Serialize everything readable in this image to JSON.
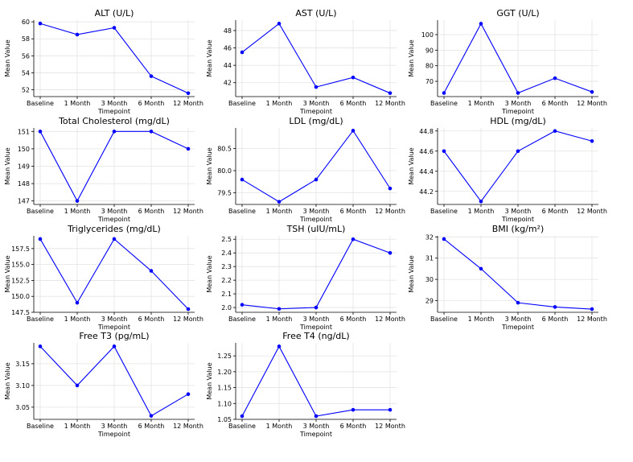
{
  "chart_data": [
    {
      "type": "line",
      "title": "ALT (U/L)",
      "xlabel": "Timepoint",
      "ylabel": "Mean Value",
      "categories": [
        "Baseline",
        "1 Month",
        "3 Month",
        "6 Month",
        "12 Month"
      ],
      "values": [
        59.8,
        58.5,
        59.3,
        53.6,
        51.6
      ],
      "ylim": [
        51.2,
        60.2
      ],
      "yticks": [
        52,
        54,
        56,
        58,
        60
      ],
      "ytick_labels": [
        "52",
        "54",
        "56",
        "58",
        "60"
      ],
      "grid": true,
      "color": "#0000ff"
    },
    {
      "type": "line",
      "title": "AST (U/L)",
      "xlabel": "Timepoint",
      "ylabel": "Mean Value",
      "categories": [
        "Baseline",
        "1 Month",
        "3 Month",
        "6 Month",
        "12 Month"
      ],
      "values": [
        45.5,
        48.8,
        41.5,
        42.6,
        40.8
      ],
      "ylim": [
        40.4,
        49.2
      ],
      "yticks": [
        42,
        44,
        46,
        48
      ],
      "ytick_labels": [
        "42",
        "44",
        "46",
        "48"
      ],
      "grid": true,
      "color": "#0000ff"
    },
    {
      "type": "line",
      "title": "GGT (U/L)",
      "xlabel": "Timepoint",
      "ylabel": "Mean Value",
      "categories": [
        "Baseline",
        "1 Month",
        "3 Month",
        "6 Month",
        "12 Month"
      ],
      "values": [
        62.5,
        107,
        62.5,
        72,
        63.2
      ],
      "ylim": [
        60.2,
        109.3
      ],
      "yticks": [
        70,
        80,
        90,
        100
      ],
      "ytick_labels": [
        "70",
        "80",
        "90",
        "100"
      ],
      "grid": true,
      "color": "#0000ff"
    },
    {
      "type": "line",
      "title": "Total Cholesterol (mg/dL)",
      "xlabel": "Timepoint",
      "ylabel": "Mean Value",
      "categories": [
        "Baseline",
        "1 Month",
        "3 Month",
        "6 Month",
        "12 Month"
      ],
      "values": [
        151,
        147,
        151,
        151,
        150
      ],
      "ylim": [
        146.8,
        151.2
      ],
      "yticks": [
        147,
        148,
        149,
        150,
        151
      ],
      "ytick_labels": [
        "147",
        "148",
        "149",
        "150",
        "151"
      ],
      "grid": true,
      "color": "#0000ff"
    },
    {
      "type": "line",
      "title": "LDL (mg/dL)",
      "xlabel": "Timepoint",
      "ylabel": "Mean Value",
      "categories": [
        "Baseline",
        "1 Month",
        "3 Month",
        "6 Month",
        "12 Month"
      ],
      "values": [
        79.8,
        79.3,
        79.8,
        80.9,
        79.6
      ],
      "ylim": [
        79.24,
        80.96
      ],
      "yticks": [
        79.5,
        80.0,
        80.5
      ],
      "ytick_labels": [
        "79.5",
        "80.0",
        "80.5"
      ],
      "grid": true,
      "color": "#0000ff"
    },
    {
      "type": "line",
      "title": "HDL (mg/dL)",
      "xlabel": "Timepoint",
      "ylabel": "Mean Value",
      "categories": [
        "Baseline",
        "1 Month",
        "3 Month",
        "6 Month",
        "12 Month"
      ],
      "values": [
        44.6,
        44.1,
        44.6,
        44.8,
        44.7
      ],
      "ylim": [
        44.07,
        44.83
      ],
      "yticks": [
        44.2,
        44.4,
        44.6,
        44.8
      ],
      "ytick_labels": [
        "44.2",
        "44.4",
        "44.6",
        "44.8"
      ],
      "grid": true,
      "color": "#0000ff"
    },
    {
      "type": "line",
      "title": "Triglycerides (mg/dL)",
      "xlabel": "Timepoint",
      "ylabel": "Mean Value",
      "categories": [
        "Baseline",
        "1 Month",
        "3 Month",
        "6 Month",
        "12 Month"
      ],
      "values": [
        159,
        149,
        159,
        154,
        148
      ],
      "ylim": [
        147.5,
        159.5
      ],
      "yticks": [
        147.5,
        150.0,
        152.5,
        155.0,
        157.5
      ],
      "ytick_labels": [
        "147.5",
        "150.0",
        "152.5",
        "155.0",
        "157.5"
      ],
      "grid": true,
      "color": "#0000ff"
    },
    {
      "type": "line",
      "title": "TSH (uIU/mL)",
      "xlabel": "Timepoint",
      "ylabel": "Mean Value",
      "categories": [
        "Baseline",
        "1 Month",
        "3 Month",
        "6 Month",
        "12 Month"
      ],
      "values": [
        2.02,
        1.99,
        2.0,
        2.5,
        2.4
      ],
      "ylim": [
        1.965,
        2.525
      ],
      "yticks": [
        2.0,
        2.1,
        2.2,
        2.3,
        2.4,
        2.5
      ],
      "ytick_labels": [
        "2.0",
        "2.1",
        "2.2",
        "2.3",
        "2.4",
        "2.5"
      ],
      "grid": true,
      "color": "#0000ff"
    },
    {
      "type": "line",
      "title": "BMI (kg/m²)",
      "xlabel": "Timepoint",
      "ylabel": "Mean Value",
      "categories": [
        "Baseline",
        "1 Month",
        "3 Month",
        "6 Month",
        "12 Month"
      ],
      "values": [
        31.9,
        30.5,
        28.9,
        28.7,
        28.6
      ],
      "ylim": [
        28.45,
        32.05
      ],
      "yticks": [
        29,
        30,
        31,
        32
      ],
      "ytick_labels": [
        "29",
        "30",
        "31",
        "32"
      ],
      "grid": true,
      "color": "#0000ff"
    },
    {
      "type": "line",
      "title": "Free T3 (pg/mL)",
      "xlabel": "Timepoint",
      "ylabel": "Mean Value",
      "categories": [
        "Baseline",
        "1 Month",
        "3 Month",
        "6 Month",
        "12 Month"
      ],
      "values": [
        3.19,
        3.1,
        3.19,
        3.03,
        3.08
      ],
      "ylim": [
        3.022,
        3.198
      ],
      "yticks": [
        3.05,
        3.1,
        3.15
      ],
      "ytick_labels": [
        "3.05",
        "3.10",
        "3.15"
      ],
      "grid": true,
      "color": "#0000ff"
    },
    {
      "type": "line",
      "title": "Free T4 (ng/dL)",
      "xlabel": "Timepoint",
      "ylabel": "Mean Value",
      "categories": [
        "Baseline",
        "1 Month",
        "3 Month",
        "6 Month",
        "12 Month"
      ],
      "values": [
        1.06,
        1.28,
        1.06,
        1.08,
        1.08
      ],
      "ylim": [
        1.05,
        1.291
      ],
      "yticks": [
        1.05,
        1.1,
        1.15,
        1.2,
        1.25
      ],
      "ytick_labels": [
        "1.05",
        "1.10",
        "1.15",
        "1.20",
        "1.25"
      ],
      "grid": true,
      "color": "#0000ff"
    }
  ]
}
